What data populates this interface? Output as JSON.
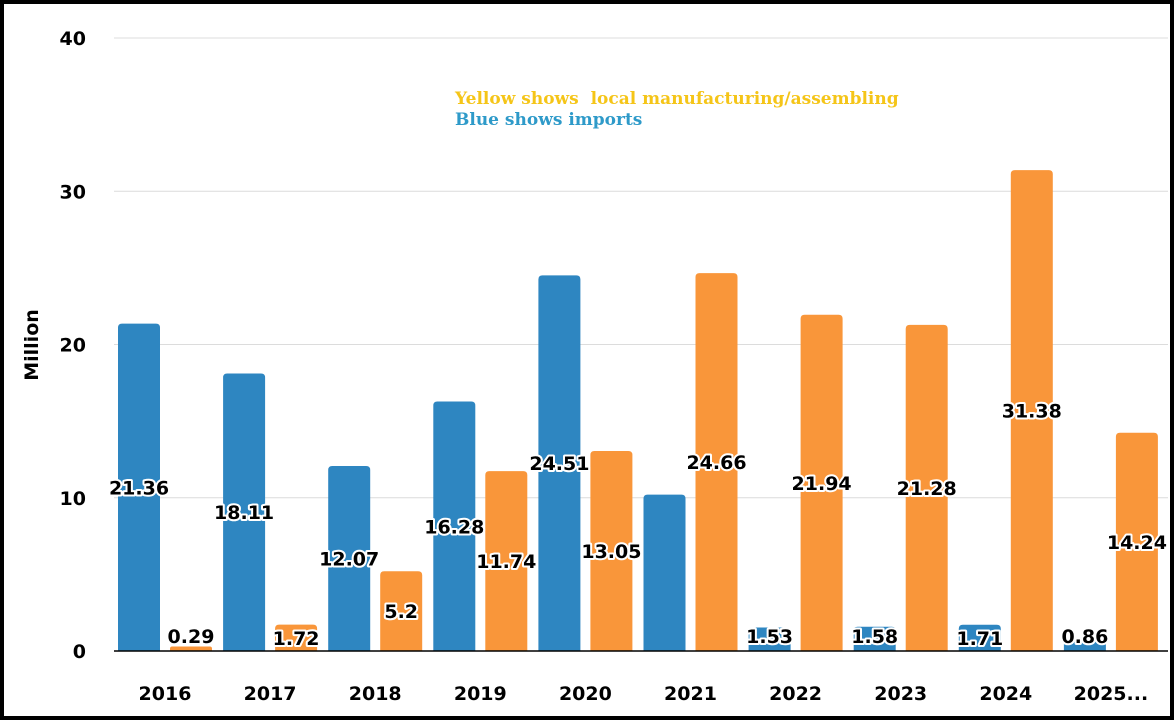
{
  "chart_data": {
    "type": "bar",
    "ylabel": "Million",
    "ylim": [
      0,
      40
    ],
    "yticks": [
      0,
      10,
      20,
      30,
      40
    ],
    "grid": true,
    "categories": [
      "2016",
      "2017",
      "2018",
      "2019",
      "2020",
      "2021",
      "2022",
      "2023",
      "2024",
      "2025..."
    ],
    "series": [
      {
        "color": "#2e86c1",
        "values": [
          21.36,
          18.11,
          12.07,
          16.28,
          24.51,
          10.2,
          1.53,
          1.58,
          1.71,
          0.86
        ],
        "labels": [
          "21.36",
          "18.11",
          "12.07",
          "16.28",
          "24.51",
          "",
          "1.53",
          "1.58",
          "1.71",
          "0.86"
        ]
      },
      {
        "color": "#f9963a",
        "values": [
          0.29,
          1.72,
          5.2,
          11.74,
          13.05,
          24.66,
          21.94,
          21.28,
          31.38,
          14.24
        ],
        "labels": [
          "0.29",
          "1.72",
          "5.2",
          "11.74",
          "13.05",
          "24.66",
          "21.94",
          "21.28",
          "31.38",
          "14.24"
        ]
      }
    ],
    "annotations": [
      {
        "text": "Yellow shows  local manufacturing/assembling",
        "color": "#f5c518"
      },
      {
        "text": "Blue shows imports",
        "color": "#2e9ac9"
      }
    ]
  }
}
